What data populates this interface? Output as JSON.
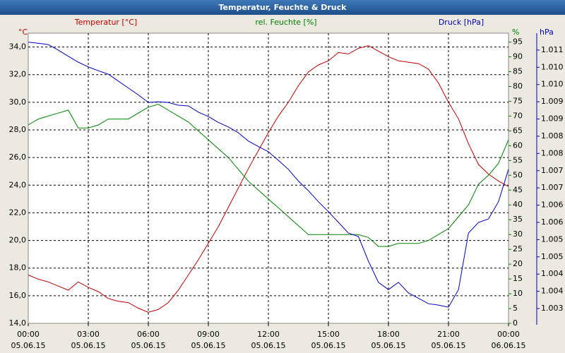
{
  "chart_data": {
    "type": "line",
    "title": "Temperatur, Feuchte & Druck",
    "y_label": "°C",
    "y2_label": "%",
    "y3_label": "hPa",
    "x": [
      0,
      0.5,
      1,
      1.5,
      2,
      2.5,
      3,
      3.5,
      4,
      4.5,
      5,
      5.5,
      6,
      6.5,
      7,
      7.5,
      8,
      8.5,
      9,
      9.5,
      10,
      10.5,
      11,
      11.5,
      12,
      12.5,
      13,
      13.5,
      14,
      14.5,
      15,
      15.5,
      16,
      16.5,
      17,
      17.5,
      18,
      18.5,
      19,
      19.5,
      20,
      20.5,
      21,
      21.5,
      22,
      22.5,
      23,
      23.5,
      24
    ],
    "xlim": [
      0,
      24
    ],
    "xticks": [
      {
        "value": 0,
        "label": "00:00"
      },
      {
        "value": 3,
        "label": "03:00"
      },
      {
        "value": 6,
        "label": "06:00"
      },
      {
        "value": 9,
        "label": "09:00"
      },
      {
        "value": 12,
        "label": "12:00"
      },
      {
        "value": 15,
        "label": "15:00"
      },
      {
        "value": 18,
        "label": "18:00"
      },
      {
        "value": 21,
        "label": "21:00"
      },
      {
        "value": 24,
        "label": "00:00"
      }
    ],
    "xtick_dates": [
      "05.06.15",
      "05.06.15",
      "05.06.15",
      "05.06.15",
      "05.06.15",
      "05.06.15",
      "05.06.15",
      "05.06.15",
      "06.06.15"
    ],
    "ylim": [
      14,
      35
    ],
    "yticks": [
      {
        "value": 14,
        "label": "14,0"
      },
      {
        "value": 16,
        "label": "16,0"
      },
      {
        "value": 18,
        "label": "18,0"
      },
      {
        "value": 20,
        "label": "20,0"
      },
      {
        "value": 22,
        "label": "22,0"
      },
      {
        "value": 24,
        "label": "24,0"
      },
      {
        "value": 26,
        "label": "26,0"
      },
      {
        "value": 28,
        "label": "28,0"
      },
      {
        "value": 30,
        "label": "30,0"
      },
      {
        "value": 32,
        "label": "32,0"
      },
      {
        "value": 34,
        "label": "34,0"
      }
    ],
    "y2lim": [
      0,
      98
    ],
    "y2ticks": [
      0,
      5,
      10,
      15,
      20,
      25,
      30,
      35,
      40,
      45,
      50,
      55,
      60,
      65,
      70,
      75,
      80,
      85,
      90,
      95
    ],
    "y3lim": [
      1002.77,
      1011.19
    ],
    "y3ticks": [
      {
        "value": 1003.2,
        "label": "1.003"
      },
      {
        "value": 1003.7,
        "label": "1.004"
      },
      {
        "value": 1004.2,
        "label": "1.004"
      },
      {
        "value": 1004.7,
        "label": "1.005"
      },
      {
        "value": 1005.2,
        "label": "1.005"
      },
      {
        "value": 1005.7,
        "label": "1.006"
      },
      {
        "value": 1006.2,
        "label": "1.006"
      },
      {
        "value": 1006.7,
        "label": "1.007"
      },
      {
        "value": 1007.2,
        "label": "1.007"
      },
      {
        "value": 1007.7,
        "label": "1.008"
      },
      {
        "value": 1008.2,
        "label": "1.008"
      },
      {
        "value": 1008.7,
        "label": "1.009"
      },
      {
        "value": 1009.2,
        "label": "1.009"
      },
      {
        "value": 1009.7,
        "label": "1.010"
      },
      {
        "value": 1010.2,
        "label": "1.010"
      },
      {
        "value": 1010.7,
        "label": "1.011"
      }
    ],
    "grid": true,
    "series": [
      {
        "name": "Temperatur [°C]",
        "color": "#c00000",
        "axis": "y",
        "values": [
          17.5,
          17.2,
          17.0,
          16.7,
          16.4,
          17.0,
          16.6,
          16.3,
          15.8,
          15.6,
          15.5,
          15.1,
          14.8,
          15.0,
          15.5,
          16.4,
          17.5,
          18.6,
          19.8,
          21.0,
          22.4,
          23.8,
          25.2,
          26.5,
          27.8,
          29.0,
          30.0,
          31.2,
          32.2,
          32.7,
          33.0,
          33.6,
          33.5,
          33.9,
          34.1,
          33.7,
          33.3,
          33.0,
          32.9,
          32.8,
          32.4,
          31.4,
          30.0,
          28.8,
          27.0,
          25.5,
          24.8,
          24.3,
          23.9
        ]
      },
      {
        "name": "rel. Feuchte [%]",
        "color": "#008000",
        "axis": "y2",
        "values": [
          67,
          69,
          70,
          71,
          72,
          66,
          66,
          67,
          69,
          69,
          69,
          71,
          73,
          74,
          72,
          70,
          68,
          65,
          62,
          59,
          56,
          52,
          48,
          45,
          42,
          39,
          36,
          33,
          30,
          30,
          30,
          30,
          30,
          30,
          29,
          26,
          26,
          27,
          27,
          27,
          28,
          30,
          32,
          36,
          40,
          47,
          50,
          54,
          62
        ]
      },
      {
        "name": "Druck [hPa]",
        "color": "#0000c0",
        "axis": "y3",
        "values": [
          1010.93,
          1010.9,
          1010.86,
          1010.7,
          1010.52,
          1010.35,
          1010.21,
          1010.1,
          1010.0,
          1009.8,
          1009.6,
          1009.4,
          1009.18,
          1009.2,
          1009.18,
          1009.1,
          1009.08,
          1008.9,
          1008.77,
          1008.6,
          1008.47,
          1008.3,
          1008.06,
          1007.9,
          1007.75,
          1007.5,
          1007.24,
          1006.9,
          1006.62,
          1006.3,
          1006.01,
          1005.7,
          1005.39,
          1005.29,
          1004.57,
          1003.96,
          1003.75,
          1003.96,
          1003.65,
          1003.5,
          1003.34,
          1003.3,
          1003.24,
          1003.75,
          1005.39,
          1005.7,
          1005.8,
          1006.3,
          1007.24
        ]
      }
    ]
  }
}
